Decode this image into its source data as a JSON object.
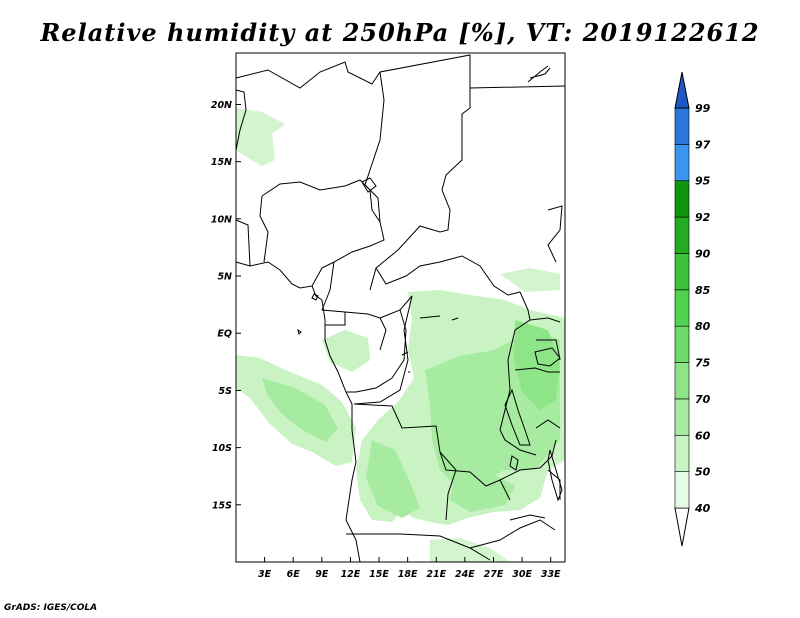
{
  "title": "Relative humidity at 250hPa [%], VT: 2019122612",
  "credit": "GrADS: IGES/COLA",
  "map": {
    "lon_range": [
      0,
      34.5
    ],
    "lat_range": [
      -20,
      24.5
    ],
    "lat_ticks": [
      {
        "value": 20,
        "label": "20N"
      },
      {
        "value": 15,
        "label": "15N"
      },
      {
        "value": 10,
        "label": "10N"
      },
      {
        "value": 5,
        "label": "5N"
      },
      {
        "value": 0,
        "label": "EQ"
      },
      {
        "value": -5,
        "label": "5S"
      },
      {
        "value": -10,
        "label": "10S"
      },
      {
        "value": -15,
        "label": "15S"
      }
    ],
    "lon_ticks": [
      {
        "value": 3,
        "label": "3E"
      },
      {
        "value": 6,
        "label": "6E"
      },
      {
        "value": 9,
        "label": "9E"
      },
      {
        "value": 12,
        "label": "12E"
      },
      {
        "value": 15,
        "label": "15E"
      },
      {
        "value": 18,
        "label": "18E"
      },
      {
        "value": 21,
        "label": "21E"
      },
      {
        "value": 24,
        "label": "24E"
      },
      {
        "value": 27,
        "label": "27E"
      },
      {
        "value": 30,
        "label": "30E"
      },
      {
        "value": 33,
        "label": "33E"
      }
    ]
  },
  "colorbar": {
    "levels": [
      {
        "label": "40",
        "color": "#e6fbe3"
      },
      {
        "label": "50",
        "color": "#c9f3c3"
      },
      {
        "label": "60",
        "color": "#a6eba0"
      },
      {
        "label": "70",
        "color": "#8ee587"
      },
      {
        "label": "75",
        "color": "#6edc68"
      },
      {
        "label": "80",
        "color": "#4fd24d"
      },
      {
        "label": "85",
        "color": "#3cc23c"
      },
      {
        "label": "90",
        "color": "#24ab24"
      },
      {
        "label": "92",
        "color": "#0f960f"
      },
      {
        "label": "95",
        "color": "#3c96f0"
      },
      {
        "label": "97",
        "color": "#2a76dc"
      },
      {
        "label": "99",
        "color": "#1c58c8"
      }
    ],
    "below_color": "#ffffff",
    "above_color": "#1c58c8"
  },
  "colors": {
    "light_green": "#c9f3c3",
    "mid_green": "#a6eba0",
    "green": "#8ee587"
  }
}
